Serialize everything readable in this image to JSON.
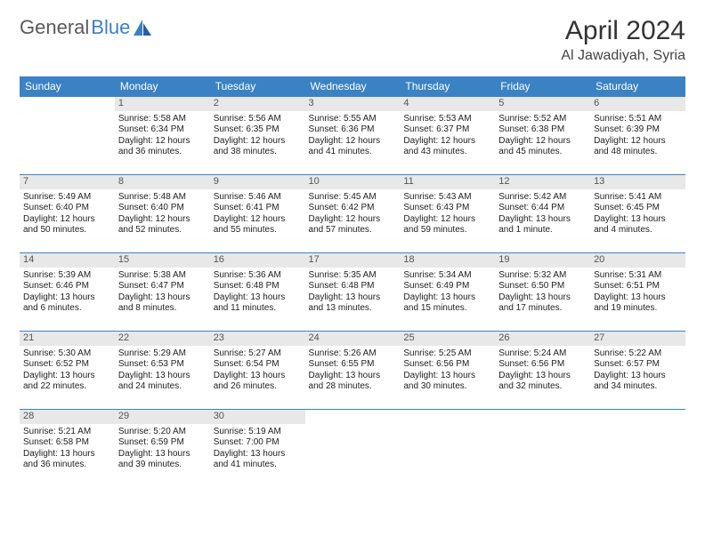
{
  "logo": {
    "text1": "General",
    "text2": "Blue"
  },
  "title": "April 2024",
  "location": "Al Jawadiyah, Syria",
  "colors": {
    "header_bg": "#3b82c4",
    "header_text": "#ffffff",
    "daynum_bg": "#e8e8e8",
    "border": "#3b82c4",
    "logo_gray": "#5a5a5a",
    "logo_blue": "#3b7fc4"
  },
  "weekdays": [
    "Sunday",
    "Monday",
    "Tuesday",
    "Wednesday",
    "Thursday",
    "Friday",
    "Saturday"
  ],
  "weeks": [
    [
      {
        "empty": true
      },
      {
        "n": "1",
        "sr": "Sunrise: 5:58 AM",
        "ss": "Sunset: 6:34 PM",
        "d1": "Daylight: 12 hours",
        "d2": "and 36 minutes."
      },
      {
        "n": "2",
        "sr": "Sunrise: 5:56 AM",
        "ss": "Sunset: 6:35 PM",
        "d1": "Daylight: 12 hours",
        "d2": "and 38 minutes."
      },
      {
        "n": "3",
        "sr": "Sunrise: 5:55 AM",
        "ss": "Sunset: 6:36 PM",
        "d1": "Daylight: 12 hours",
        "d2": "and 41 minutes."
      },
      {
        "n": "4",
        "sr": "Sunrise: 5:53 AM",
        "ss": "Sunset: 6:37 PM",
        "d1": "Daylight: 12 hours",
        "d2": "and 43 minutes."
      },
      {
        "n": "5",
        "sr": "Sunrise: 5:52 AM",
        "ss": "Sunset: 6:38 PM",
        "d1": "Daylight: 12 hours",
        "d2": "and 45 minutes."
      },
      {
        "n": "6",
        "sr": "Sunrise: 5:51 AM",
        "ss": "Sunset: 6:39 PM",
        "d1": "Daylight: 12 hours",
        "d2": "and 48 minutes."
      }
    ],
    [
      {
        "n": "7",
        "sr": "Sunrise: 5:49 AM",
        "ss": "Sunset: 6:40 PM",
        "d1": "Daylight: 12 hours",
        "d2": "and 50 minutes."
      },
      {
        "n": "8",
        "sr": "Sunrise: 5:48 AM",
        "ss": "Sunset: 6:40 PM",
        "d1": "Daylight: 12 hours",
        "d2": "and 52 minutes."
      },
      {
        "n": "9",
        "sr": "Sunrise: 5:46 AM",
        "ss": "Sunset: 6:41 PM",
        "d1": "Daylight: 12 hours",
        "d2": "and 55 minutes."
      },
      {
        "n": "10",
        "sr": "Sunrise: 5:45 AM",
        "ss": "Sunset: 6:42 PM",
        "d1": "Daylight: 12 hours",
        "d2": "and 57 minutes."
      },
      {
        "n": "11",
        "sr": "Sunrise: 5:43 AM",
        "ss": "Sunset: 6:43 PM",
        "d1": "Daylight: 12 hours",
        "d2": "and 59 minutes."
      },
      {
        "n": "12",
        "sr": "Sunrise: 5:42 AM",
        "ss": "Sunset: 6:44 PM",
        "d1": "Daylight: 13 hours",
        "d2": "and 1 minute."
      },
      {
        "n": "13",
        "sr": "Sunrise: 5:41 AM",
        "ss": "Sunset: 6:45 PM",
        "d1": "Daylight: 13 hours",
        "d2": "and 4 minutes."
      }
    ],
    [
      {
        "n": "14",
        "sr": "Sunrise: 5:39 AM",
        "ss": "Sunset: 6:46 PM",
        "d1": "Daylight: 13 hours",
        "d2": "and 6 minutes."
      },
      {
        "n": "15",
        "sr": "Sunrise: 5:38 AM",
        "ss": "Sunset: 6:47 PM",
        "d1": "Daylight: 13 hours",
        "d2": "and 8 minutes."
      },
      {
        "n": "16",
        "sr": "Sunrise: 5:36 AM",
        "ss": "Sunset: 6:48 PM",
        "d1": "Daylight: 13 hours",
        "d2": "and 11 minutes."
      },
      {
        "n": "17",
        "sr": "Sunrise: 5:35 AM",
        "ss": "Sunset: 6:48 PM",
        "d1": "Daylight: 13 hours",
        "d2": "and 13 minutes."
      },
      {
        "n": "18",
        "sr": "Sunrise: 5:34 AM",
        "ss": "Sunset: 6:49 PM",
        "d1": "Daylight: 13 hours",
        "d2": "and 15 minutes."
      },
      {
        "n": "19",
        "sr": "Sunrise: 5:32 AM",
        "ss": "Sunset: 6:50 PM",
        "d1": "Daylight: 13 hours",
        "d2": "and 17 minutes."
      },
      {
        "n": "20",
        "sr": "Sunrise: 5:31 AM",
        "ss": "Sunset: 6:51 PM",
        "d1": "Daylight: 13 hours",
        "d2": "and 19 minutes."
      }
    ],
    [
      {
        "n": "21",
        "sr": "Sunrise: 5:30 AM",
        "ss": "Sunset: 6:52 PM",
        "d1": "Daylight: 13 hours",
        "d2": "and 22 minutes."
      },
      {
        "n": "22",
        "sr": "Sunrise: 5:29 AM",
        "ss": "Sunset: 6:53 PM",
        "d1": "Daylight: 13 hours",
        "d2": "and 24 minutes."
      },
      {
        "n": "23",
        "sr": "Sunrise: 5:27 AM",
        "ss": "Sunset: 6:54 PM",
        "d1": "Daylight: 13 hours",
        "d2": "and 26 minutes."
      },
      {
        "n": "24",
        "sr": "Sunrise: 5:26 AM",
        "ss": "Sunset: 6:55 PM",
        "d1": "Daylight: 13 hours",
        "d2": "and 28 minutes."
      },
      {
        "n": "25",
        "sr": "Sunrise: 5:25 AM",
        "ss": "Sunset: 6:56 PM",
        "d1": "Daylight: 13 hours",
        "d2": "and 30 minutes."
      },
      {
        "n": "26",
        "sr": "Sunrise: 5:24 AM",
        "ss": "Sunset: 6:56 PM",
        "d1": "Daylight: 13 hours",
        "d2": "and 32 minutes."
      },
      {
        "n": "27",
        "sr": "Sunrise: 5:22 AM",
        "ss": "Sunset: 6:57 PM",
        "d1": "Daylight: 13 hours",
        "d2": "and 34 minutes."
      }
    ],
    [
      {
        "n": "28",
        "sr": "Sunrise: 5:21 AM",
        "ss": "Sunset: 6:58 PM",
        "d1": "Daylight: 13 hours",
        "d2": "and 36 minutes."
      },
      {
        "n": "29",
        "sr": "Sunrise: 5:20 AM",
        "ss": "Sunset: 6:59 PM",
        "d1": "Daylight: 13 hours",
        "d2": "and 39 minutes."
      },
      {
        "n": "30",
        "sr": "Sunrise: 5:19 AM",
        "ss": "Sunset: 7:00 PM",
        "d1": "Daylight: 13 hours",
        "d2": "and 41 minutes."
      },
      {
        "empty": true
      },
      {
        "empty": true
      },
      {
        "empty": true
      },
      {
        "empty": true
      }
    ]
  ]
}
